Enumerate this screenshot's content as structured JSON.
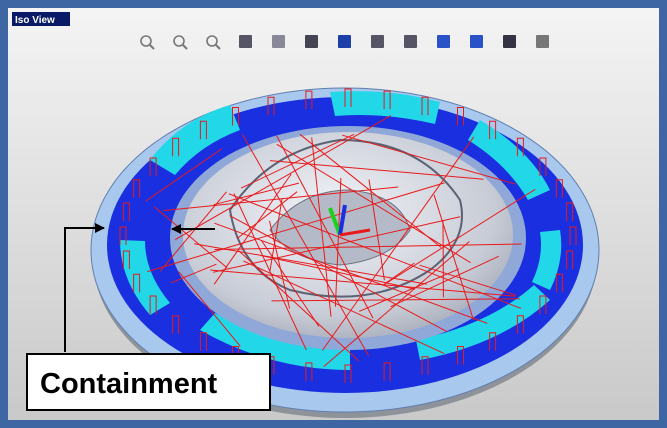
{
  "view": {
    "label": "Iso View"
  },
  "callout": {
    "label": "Containment"
  }
}
